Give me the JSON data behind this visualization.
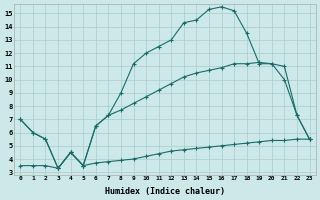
{
  "title": "",
  "xlabel": "Humidex (Indice chaleur)",
  "background_color": "#cce8e8",
  "grid_color": "#aacccc",
  "line_color": "#1a6b6b",
  "xlim": [
    -0.5,
    23.5
  ],
  "ylim": [
    2.8,
    15.7
  ],
  "xticks": [
    0,
    1,
    2,
    3,
    4,
    5,
    6,
    7,
    8,
    9,
    10,
    11,
    12,
    13,
    14,
    15,
    16,
    17,
    18,
    19,
    20,
    21,
    22,
    23
  ],
  "yticks": [
    3,
    4,
    5,
    6,
    7,
    8,
    9,
    10,
    11,
    12,
    13,
    14,
    15
  ],
  "line1_x": [
    0,
    1,
    2,
    3,
    4,
    5,
    6,
    7,
    8,
    9,
    10,
    11,
    12,
    13,
    14,
    15,
    16,
    17,
    18,
    19,
    20,
    21,
    22,
    23
  ],
  "line1_y": [
    7.0,
    6.0,
    5.5,
    3.3,
    4.5,
    3.5,
    6.5,
    7.3,
    9.0,
    11.2,
    12.0,
    12.5,
    13.0,
    14.3,
    14.5,
    15.3,
    15.5,
    15.2,
    13.5,
    11.2,
    11.2,
    10.0,
    7.3,
    5.5
  ],
  "line2_x": [
    0,
    1,
    2,
    3,
    4,
    5,
    6,
    7,
    8,
    9,
    10,
    11,
    12,
    13,
    14,
    15,
    16,
    17,
    18,
    19,
    20,
    21,
    22,
    23
  ],
  "line2_y": [
    7.0,
    6.0,
    5.5,
    3.3,
    4.5,
    3.5,
    6.5,
    7.3,
    7.7,
    8.2,
    8.7,
    9.2,
    9.7,
    10.2,
    10.5,
    10.7,
    10.9,
    11.2,
    11.2,
    11.3,
    11.2,
    11.0,
    7.3,
    5.5
  ],
  "line3_x": [
    0,
    1,
    2,
    3,
    4,
    5,
    6,
    7,
    8,
    9,
    10,
    11,
    12,
    13,
    14,
    15,
    16,
    17,
    18,
    19,
    20,
    21,
    22,
    23
  ],
  "line3_y": [
    3.5,
    3.5,
    3.5,
    3.3,
    4.5,
    3.5,
    3.7,
    3.8,
    3.9,
    4.0,
    4.2,
    4.4,
    4.6,
    4.7,
    4.8,
    4.9,
    5.0,
    5.1,
    5.2,
    5.3,
    5.4,
    5.4,
    5.5,
    5.5
  ]
}
